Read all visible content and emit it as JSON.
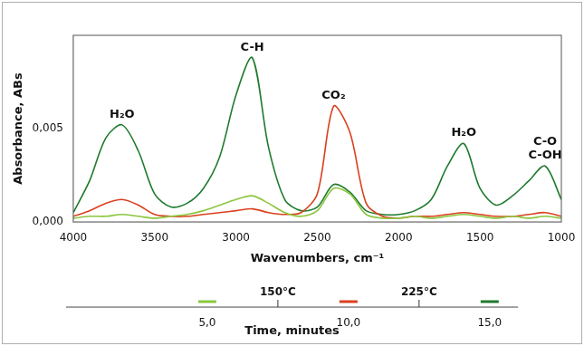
{
  "chart_data": [
    {
      "type": "line",
      "x_label": "Wavenumbers, cm⁻¹",
      "y_label": "Absorbance, ABs",
      "x": [
        4000,
        3900,
        3800,
        3700,
        3600,
        3500,
        3400,
        3300,
        3200,
        3100,
        3000,
        2900,
        2800,
        2700,
        2600,
        2500,
        2400,
        2300,
        2200,
        2100,
        2000,
        1900,
        1800,
        1700,
        1600,
        1500,
        1400,
        1300,
        1200,
        1100,
        1000
      ],
      "series": [
        {
          "time": 5,
          "color": "#8cc63f",
          "marker": "none",
          "values": [
            0.0002,
            0.0003,
            0.0003,
            0.0004,
            0.0003,
            0.0002,
            0.0003,
            0.0004,
            0.0006,
            0.0009,
            0.0012,
            0.0014,
            0.001,
            0.0005,
            0.0003,
            0.0006,
            0.0018,
            0.0015,
            0.0004,
            0.0002,
            0.0002,
            0.0003,
            0.0002,
            0.0003,
            0.0004,
            0.0003,
            0.0002,
            0.0003,
            0.0002,
            0.0003,
            0.0002
          ]
        },
        {
          "time": 10,
          "color": "#d9411e",
          "marker": "none",
          "values": [
            0.0003,
            0.0006,
            0.001,
            0.0012,
            0.0009,
            0.0004,
            0.0003,
            0.0003,
            0.0004,
            0.0005,
            0.0006,
            0.0007,
            0.0005,
            0.0004,
            0.0005,
            0.0015,
            0.0062,
            0.0048,
            0.001,
            0.0003,
            0.0002,
            0.0003,
            0.0003,
            0.0004,
            0.0005,
            0.0004,
            0.0003,
            0.0003,
            0.0004,
            0.0005,
            0.0003
          ]
        },
        {
          "time": 15,
          "color": "#1f7a2e",
          "marker": "none",
          "values": [
            0.0005,
            0.0022,
            0.0045,
            0.0052,
            0.0038,
            0.0015,
            0.0008,
            0.001,
            0.0018,
            0.0035,
            0.0068,
            0.0088,
            0.004,
            0.0012,
            0.0006,
            0.0008,
            0.002,
            0.0016,
            0.0006,
            0.0004,
            0.0004,
            0.0006,
            0.0012,
            0.003,
            0.0042,
            0.0018,
            0.0009,
            0.0014,
            0.0022,
            0.003,
            0.0012
          ]
        }
      ],
      "xlim": [
        4000,
        1000
      ],
      "xticks": [
        4000,
        3500,
        3000,
        2500,
        2000,
        1500,
        1000
      ],
      "ylim": [
        0,
        0.01
      ],
      "yticks": [
        {
          "value": 0,
          "label": "0,000"
        },
        {
          "value": 0.005,
          "label": "0,005"
        }
      ],
      "grid": false,
      "annotations": [
        {
          "text": "H₂O",
          "x": 3700,
          "y": 0.0052
        },
        {
          "text": "C-H",
          "x": 2900,
          "y": 0.0088
        },
        {
          "text": "CO₂",
          "x": 2400,
          "y": 0.0062
        },
        {
          "text": "H₂O",
          "x": 1600,
          "y": 0.0042
        },
        {
          "text": [
            "C-O",
            "C-OH"
          ],
          "x": 1100,
          "y": 0.003
        }
      ]
    },
    {
      "type": "scatter",
      "x_label": "Time, minutes",
      "xlim": [
        0,
        16
      ],
      "xticks": [
        {
          "value": 5,
          "label": "5,0"
        },
        {
          "value": 10,
          "label": "10,0"
        },
        {
          "value": 15,
          "label": "15,0"
        }
      ],
      "tick_labels": "x",
      "markers": [
        {
          "x": 7.5,
          "label": "150°C"
        },
        {
          "x": 12.5,
          "label": "225°C"
        }
      ]
    }
  ]
}
